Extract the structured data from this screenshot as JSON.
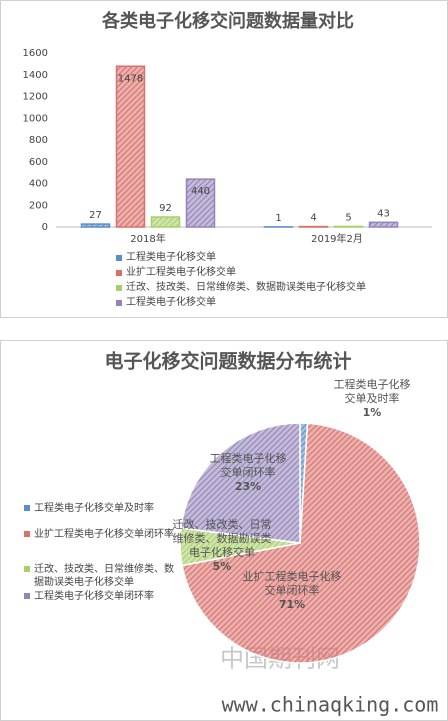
{
  "chart_data": [
    {
      "type": "bar",
      "title": "各类电子化移交问题数据量对比",
      "categories": [
        "2018年",
        "2019年2月"
      ],
      "series": [
        {
          "name": "工程类电子化移交单",
          "color": "#5b8ec9",
          "values": [
            27,
            1
          ]
        },
        {
          "name": "业扩工程类电子化移交单",
          "color": "#d9706c",
          "values": [
            1478,
            4
          ]
        },
        {
          "name": "迁改、技改类、日常维修类、数据勘误类电子化移交单",
          "color": "#a9cf6a",
          "values": [
            92,
            5
          ]
        },
        {
          "name": "工程类电子化移交单",
          "color": "#9483b8",
          "values": [
            440,
            43
          ]
        }
      ],
      "ylim": [
        0,
        1600
      ],
      "yticks": [
        0,
        200,
        400,
        600,
        800,
        1000,
        1200,
        1400,
        1600
      ],
      "grid": false,
      "legend": "bottom"
    },
    {
      "type": "pie",
      "title": "电子化移交问题数据分布统计",
      "categories": [
        "工程类电子化移交单及时率",
        "业扩工程类电子化移交单闭环率",
        "迁改、技改类、日常维修类、数据勘误类电子化移交单",
        "工程类电子化移交单闭环率"
      ],
      "values": [
        1,
        71,
        5,
        23
      ],
      "value_labels": [
        "1%",
        "71%",
        "5%",
        "23%"
      ],
      "colors": [
        "#5b8ec9",
        "#d9706c",
        "#a9cf6a",
        "#9483b8"
      ],
      "legend": "left"
    }
  ],
  "watermark": {
    "logo": "中国期刊网",
    "url": "www.chinaqking.com"
  }
}
